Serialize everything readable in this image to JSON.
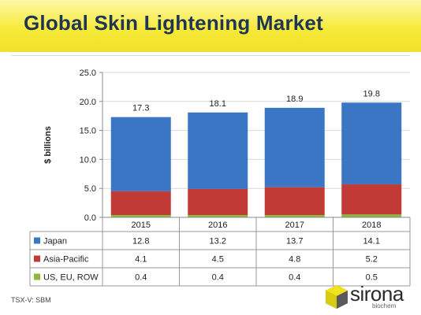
{
  "header": {
    "title": "Global Skin Lightening Market"
  },
  "footer": {
    "ticker": "TSX-V: SBM"
  },
  "logo": {
    "name": "sirona",
    "sub": "biochem",
    "icon": "sirona-cube-icon"
  },
  "colors": {
    "japan": "#3a76c4",
    "asia_pacific": "#c23a36",
    "row": "#8cb83c",
    "title": "#1e3554"
  },
  "chart_data": {
    "type": "bar",
    "stacked": true,
    "title": "",
    "xlabel": "",
    "ylabel": "$ billions",
    "ylim": [
      0,
      25
    ],
    "yticks": [
      "0.0",
      "5.0",
      "10.0",
      "15.0",
      "20.0",
      "25.0"
    ],
    "categories": [
      "2015",
      "2016",
      "2017",
      "2018"
    ],
    "totals": [
      "17.3",
      "18.1",
      "18.9",
      "19.8"
    ],
    "grid": true,
    "legend": "data-table-left",
    "series": [
      {
        "name": "US, EU, ROW",
        "values": [
          0.4,
          0.4,
          0.4,
          0.5
        ],
        "labels": [
          "0.4",
          "0.4",
          "0.4",
          "0.5"
        ],
        "color": "#8cb83c"
      },
      {
        "name": "Asia-Pacific",
        "values": [
          4.1,
          4.5,
          4.8,
          5.2
        ],
        "labels": [
          "4.1",
          "4.5",
          "4.8",
          "5.2"
        ],
        "color": "#c23a36"
      },
      {
        "name": "Japan",
        "values": [
          12.8,
          13.2,
          13.7,
          14.1
        ],
        "labels": [
          "12.8",
          "13.2",
          "13.7",
          "14.1"
        ],
        "color": "#3a76c4"
      }
    ],
    "table_rows": [
      {
        "name": "Japan",
        "labels": [
          "12.8",
          "13.2",
          "13.7",
          "14.1"
        ],
        "color": "#3a76c4"
      },
      {
        "name": "Asia-Pacific",
        "labels": [
          "4.1",
          "4.5",
          "4.8",
          "5.2"
        ],
        "color": "#c23a36"
      },
      {
        "name": "US, EU, ROW",
        "labels": [
          "0.4",
          "0.4",
          "0.4",
          "0.5"
        ],
        "color": "#8cb83c"
      }
    ]
  }
}
